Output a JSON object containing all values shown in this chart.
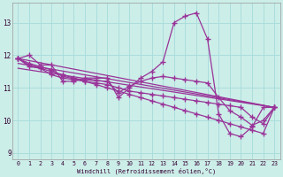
{
  "xlabel": "Windchill (Refroidissement éolien,°C)",
  "bg_color": "#cceee8",
  "line_color": "#993399",
  "grid_color": "#aadddd",
  "hours": [
    0,
    1,
    2,
    3,
    4,
    5,
    6,
    7,
    8,
    9,
    10,
    11,
    12,
    13,
    14,
    15,
    16,
    17,
    18,
    19,
    20,
    21,
    22,
    23
  ],
  "windchill": [
    11.9,
    12.0,
    11.7,
    11.7,
    11.2,
    11.2,
    11.3,
    11.3,
    11.3,
    10.7,
    11.0,
    11.3,
    11.5,
    11.8,
    13.0,
    13.2,
    13.3,
    12.5,
    10.2,
    9.6,
    9.5,
    9.8,
    10.4,
    10.4
  ],
  "series2": [
    11.9,
    11.7,
    11.6,
    11.5,
    11.4,
    11.3,
    11.2,
    11.1,
    11.0,
    10.9,
    10.8,
    10.7,
    10.6,
    10.5,
    10.4,
    10.3,
    10.2,
    10.1,
    10.0,
    9.9,
    9.8,
    9.7,
    9.6,
    10.4
  ],
  "series3": [
    11.9,
    11.65,
    11.6,
    11.4,
    11.3,
    11.25,
    11.2,
    11.15,
    11.1,
    11.0,
    10.9,
    10.85,
    10.8,
    10.75,
    10.7,
    10.65,
    10.6,
    10.55,
    10.5,
    10.45,
    10.4,
    10.1,
    9.9,
    10.4
  ],
  "series4": [
    11.9,
    11.75,
    11.65,
    11.55,
    11.35,
    11.28,
    11.25,
    11.22,
    11.2,
    10.85,
    11.05,
    11.2,
    11.3,
    11.35,
    11.3,
    11.25,
    11.2,
    11.15,
    10.7,
    10.3,
    10.1,
    9.85,
    10.0,
    10.4
  ],
  "ylim": [
    8.8,
    13.6
  ],
  "yticks": [
    9,
    10,
    11,
    12,
    13
  ],
  "xlim": [
    -0.5,
    23.5
  ],
  "xticks": [
    0,
    1,
    2,
    3,
    4,
    5,
    6,
    7,
    8,
    9,
    10,
    11,
    12,
    13,
    14,
    15,
    16,
    17,
    18,
    19,
    20,
    21,
    22,
    23
  ]
}
